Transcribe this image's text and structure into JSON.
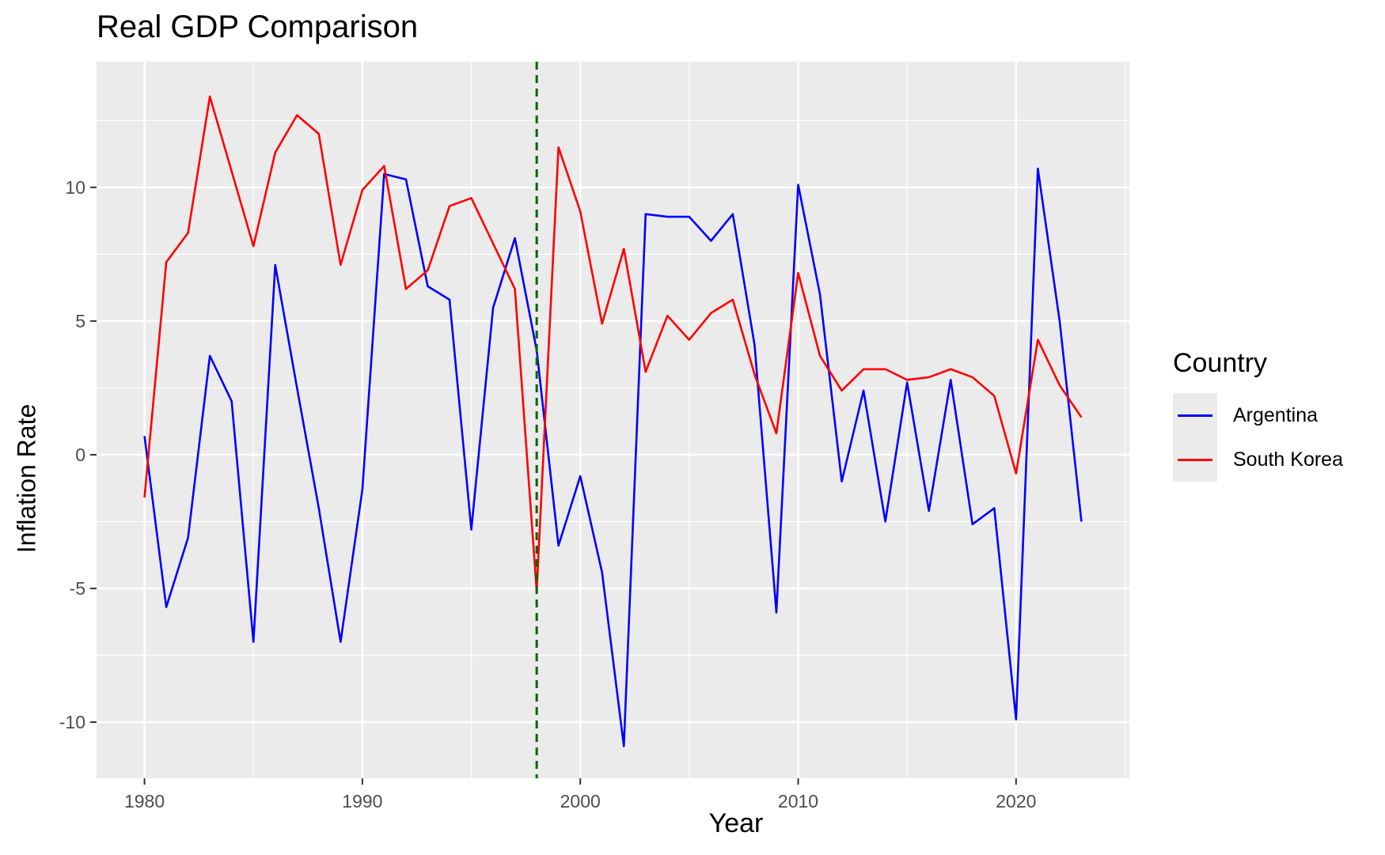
{
  "chart_data": {
    "type": "line",
    "title": "Real GDP Comparison",
    "xlabel": "Year",
    "ylabel": "Inflation Rate",
    "xlim": [
      1977.8,
      2025.2
    ],
    "ylim": [
      -12.1,
      14.7
    ],
    "x_ticks": [
      1980,
      1990,
      2000,
      2010,
      2020
    ],
    "y_ticks": [
      -10,
      -5,
      0,
      5,
      10
    ],
    "grid": true,
    "legend_title": "Country",
    "legend_position": "right",
    "vline": {
      "x": 1998,
      "color": "#006400",
      "style": "dashed"
    },
    "x": [
      1980,
      1981,
      1982,
      1983,
      1984,
      1985,
      1986,
      1987,
      1988,
      1989,
      1990,
      1991,
      1992,
      1993,
      1994,
      1995,
      1996,
      1997,
      1998,
      1999,
      2000,
      2001,
      2002,
      2003,
      2004,
      2005,
      2006,
      2007,
      2008,
      2009,
      2010,
      2011,
      2012,
      2013,
      2014,
      2015,
      2016,
      2017,
      2018,
      2019,
      2020,
      2021,
      2022,
      2023
    ],
    "series": [
      {
        "name": "Argentina",
        "color": "#0000FF",
        "values": [
          0.7,
          -5.7,
          -3.1,
          3.7,
          2.0,
          -7.0,
          7.1,
          2.5,
          -2.0,
          -7.0,
          -1.3,
          10.5,
          10.3,
          6.3,
          5.8,
          -2.8,
          5.5,
          8.1,
          3.9,
          -3.4,
          -0.8,
          -4.4,
          -10.9,
          9.0,
          8.9,
          8.9,
          8.0,
          9.0,
          4.1,
          -5.9,
          10.1,
          6.0,
          -1.0,
          2.4,
          -2.5,
          2.7,
          -2.1,
          2.8,
          -2.6,
          -2.0,
          -9.9,
          10.7,
          5.0,
          -2.5
        ]
      },
      {
        "name": "South Korea",
        "color": "#FF0000",
        "values": [
          -1.6,
          7.2,
          8.3,
          13.4,
          10.6,
          7.8,
          11.3,
          12.7,
          12.0,
          7.1,
          9.9,
          10.8,
          6.2,
          6.9,
          9.3,
          9.6,
          7.9,
          6.2,
          -5.1,
          11.5,
          9.1,
          4.9,
          7.7,
          3.1,
          5.2,
          4.3,
          5.3,
          5.8,
          3.0,
          0.8,
          6.8,
          3.7,
          2.4,
          3.2,
          3.2,
          2.8,
          2.9,
          3.2,
          2.9,
          2.2,
          -0.7,
          4.3,
          2.6,
          1.4
        ]
      }
    ]
  }
}
